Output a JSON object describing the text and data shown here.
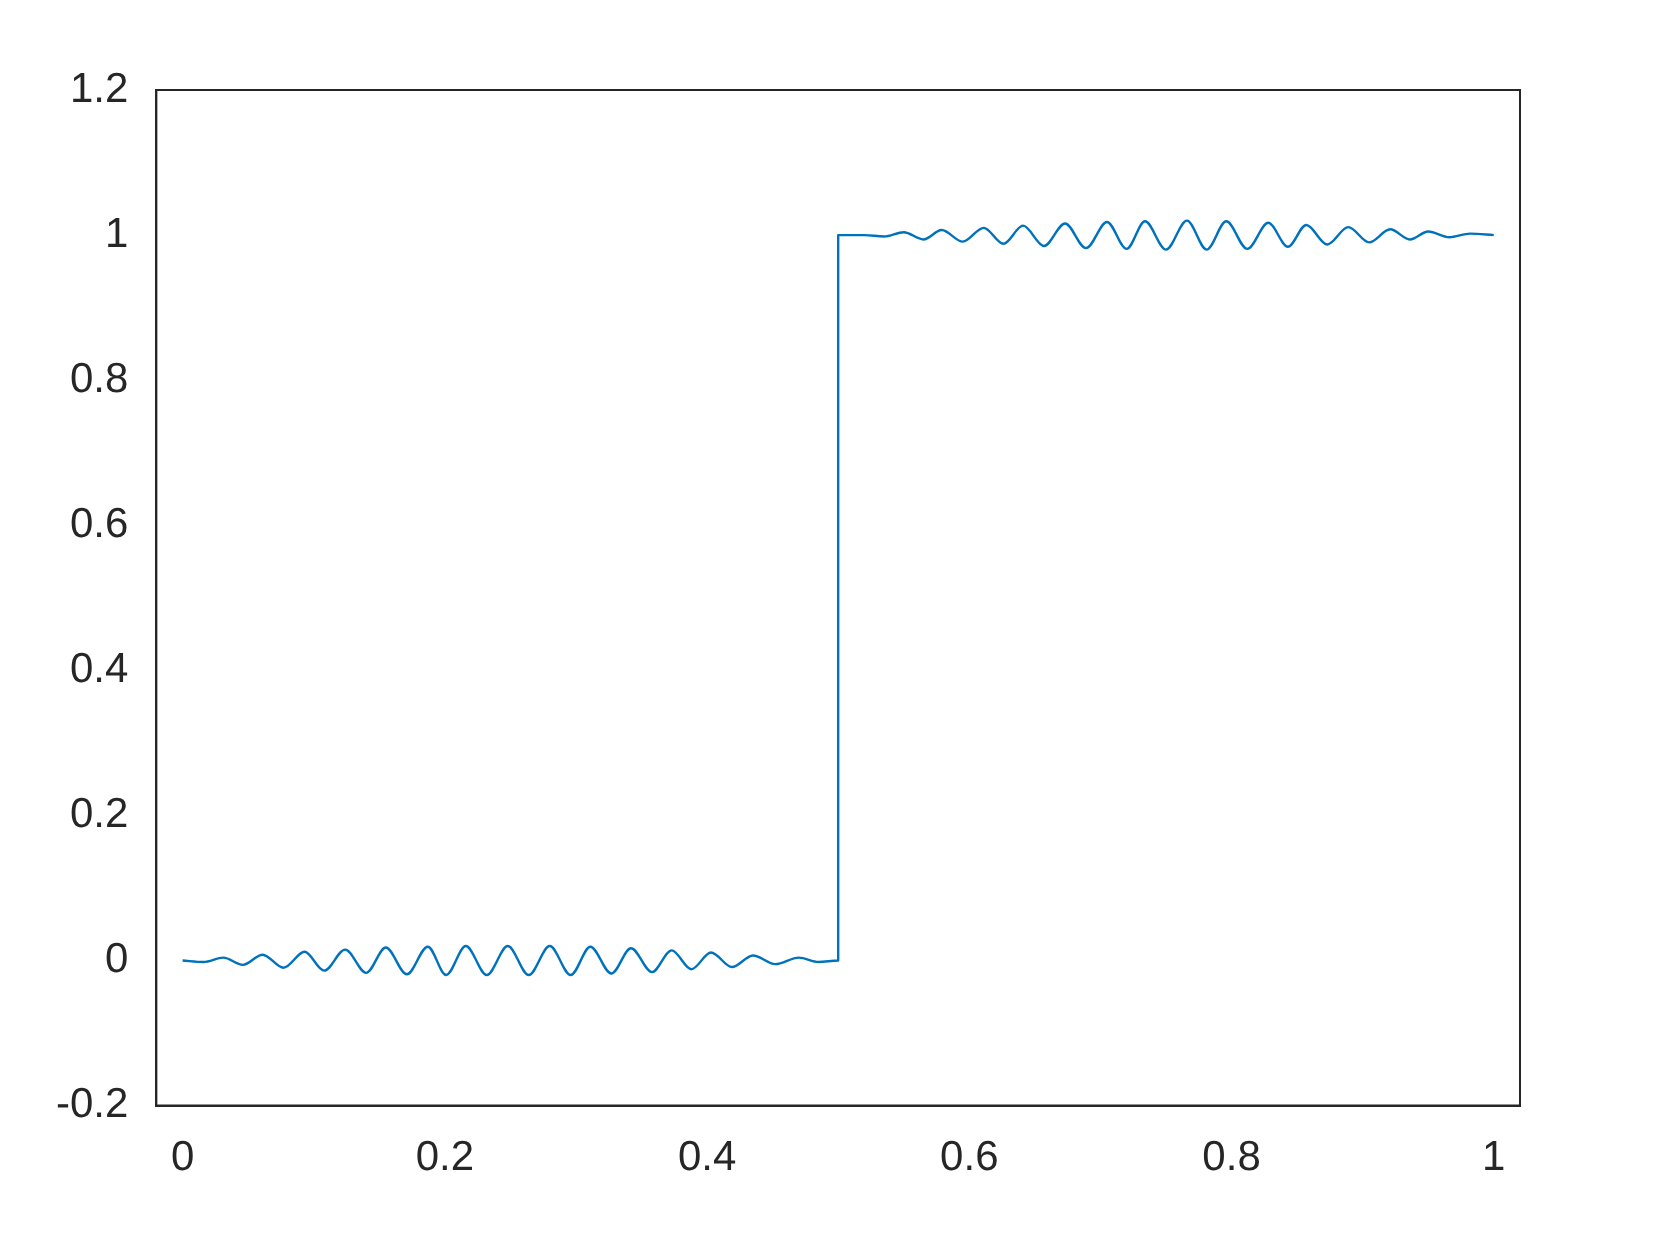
{
  "chart_data": {
    "type": "line",
    "xlim": [
      -0.02,
      1.02
    ],
    "ylim": [
      -0.2,
      1.2
    ],
    "xticks": [
      0,
      0.2,
      0.4,
      0.6,
      0.8,
      1
    ],
    "yticks": [
      -0.2,
      0,
      0.2,
      0.4,
      0.6,
      0.8,
      1,
      1.2
    ],
    "grid": false,
    "legend": false,
    "marker": "none",
    "line_style": "solid",
    "series": [
      {
        "color": "#0072bd",
        "x": [
          0,
          0.016,
          0.031,
          0.046,
          0.061,
          0.077,
          0.093,
          0.108,
          0.124,
          0.14,
          0.155,
          0.171,
          0.187,
          0.201,
          0.216,
          0.232,
          0.248,
          0.264,
          0.28,
          0.296,
          0.311,
          0.327,
          0.342,
          0.358,
          0.373,
          0.388,
          0.403,
          0.419,
          0.435,
          0.452,
          0.47,
          0.485,
          0.5,
          0.5,
          0.52,
          0.535,
          0.55,
          0.565,
          0.579,
          0.595,
          0.611,
          0.626,
          0.641,
          0.657,
          0.673,
          0.689,
          0.705,
          0.72,
          0.734,
          0.75,
          0.766,
          0.781,
          0.796,
          0.812,
          0.828,
          0.843,
          0.857,
          0.873,
          0.889,
          0.905,
          0.921,
          0.936,
          0.95,
          0.966,
          0.982,
          1
        ],
        "values": [
          0,
          -0.002,
          0.004,
          -0.006,
          0.008,
          -0.01,
          0.012,
          -0.014,
          0.015,
          -0.017,
          0.018,
          -0.019,
          0.019,
          -0.02,
          0.02,
          -0.02,
          0.02,
          -0.02,
          0.02,
          -0.02,
          0.019,
          -0.018,
          0.017,
          -0.016,
          0.014,
          -0.012,
          0.011,
          -0.009,
          0.007,
          -0.005,
          0.004,
          -0.002,
          0,
          1,
          1,
          0.998,
          1.004,
          0.994,
          1.007,
          0.991,
          1.01,
          0.988,
          1.013,
          0.985,
          1.016,
          0.982,
          1.018,
          0.981,
          1.019,
          0.98,
          1.02,
          0.98,
          1.019,
          0.981,
          1.017,
          0.984,
          1.014,
          0.987,
          1.011,
          0.99,
          1.008,
          0.994,
          1.005,
          0.997,
          1.002,
          1
        ]
      }
    ]
  }
}
